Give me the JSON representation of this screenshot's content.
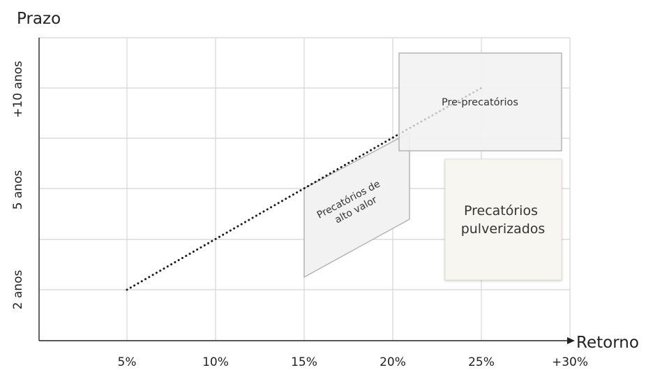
{
  "chart_data": {
    "type": "diagram",
    "axes": {
      "y_title": "Prazo",
      "x_title": "Retorno",
      "x_ticks": [
        "5%",
        "10%",
        "15%",
        "20%",
        "25%",
        "+30%"
      ],
      "y_ticks": [
        "2 anos",
        "5 anos",
        "+10 anos"
      ]
    },
    "regions": [
      {
        "id": "alto-valor",
        "label_lines": [
          "Precatórios de",
          "alto valor"
        ],
        "fill": "#f2f2f2",
        "stroke": "#b5b5b5"
      },
      {
        "id": "pre",
        "label_lines": [
          "Pre-precatórios"
        ],
        "fill": "#f2f2f2",
        "stroke": "#b5b5b5"
      },
      {
        "id": "pulverizados",
        "label_lines": [
          "Precatórios",
          "pulverizados"
        ],
        "fill": "#f8f6f1",
        "stroke": "#e5e0d6"
      }
    ],
    "colors": {
      "grid": "#dcdcdc",
      "axis": "#222222",
      "trend_dark": "#1a1a1a",
      "trend_light": "#c3c3c3",
      "text": "#222222"
    }
  }
}
